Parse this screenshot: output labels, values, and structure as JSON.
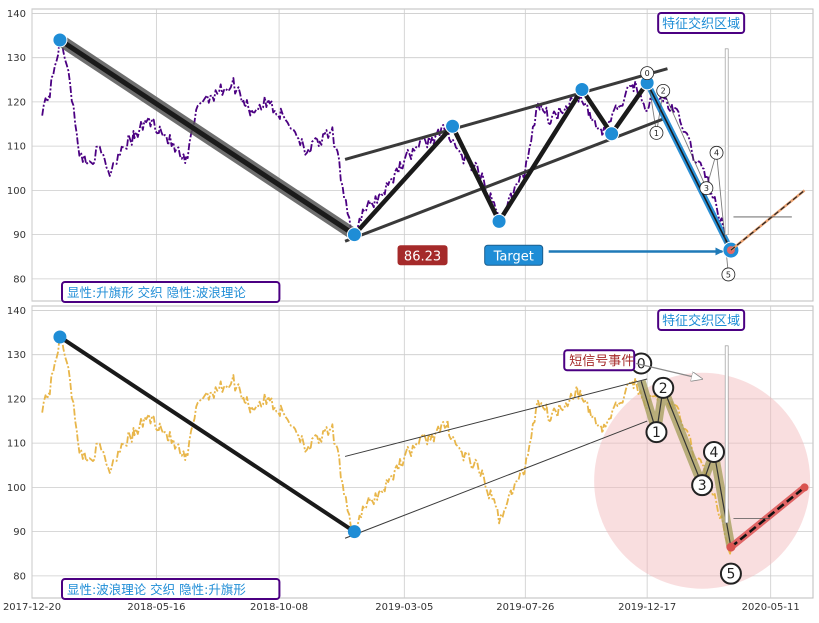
{
  "chart_data": [
    {
      "type": "line",
      "panel": "top",
      "ylim": [
        75,
        141
      ],
      "yticks": [
        80,
        90,
        100,
        110,
        120,
        130,
        140
      ],
      "xlim": [
        "2017-12-20",
        "2020-06-30"
      ],
      "xticks": [
        "2017-12-20",
        "2018-05-16",
        "2018-10-08",
        "2019-03-05",
        "2019-07-26",
        "2019-12-17",
        "2020-05-11"
      ],
      "grid": true,
      "price_series": {
        "style": "dash-dot",
        "color": "#4b0082",
        "anchors": [
          [
            "2018-01-01",
            118.5
          ],
          [
            "2018-01-10",
            122
          ],
          [
            "2018-01-22",
            134
          ],
          [
            "2018-02-01",
            128
          ],
          [
            "2018-02-12",
            110
          ],
          [
            "2018-02-22",
            106
          ],
          [
            "2018-03-10",
            109
          ],
          [
            "2018-03-22",
            104
          ],
          [
            "2018-04-05",
            110
          ],
          [
            "2018-04-20",
            112
          ],
          [
            "2018-05-05",
            116
          ],
          [
            "2018-05-20",
            114
          ],
          [
            "2018-06-05",
            110
          ],
          [
            "2018-06-20",
            106
          ],
          [
            "2018-07-05",
            120
          ],
          [
            "2018-07-25",
            122
          ],
          [
            "2018-08-15",
            124
          ],
          [
            "2018-09-05",
            118
          ],
          [
            "2018-09-25",
            120
          ],
          [
            "2018-10-10",
            117
          ],
          [
            "2018-10-25",
            114
          ],
          [
            "2018-11-10",
            109
          ],
          [
            "2018-11-25",
            111
          ],
          [
            "2018-12-10",
            113
          ],
          [
            "2019-01-03",
            90
          ],
          [
            "2019-01-20",
            96
          ],
          [
            "2019-02-10",
            100
          ],
          [
            "2019-03-01",
            106
          ],
          [
            "2019-03-20",
            110
          ],
          [
            "2019-04-10",
            112
          ],
          [
            "2019-04-25",
            114
          ],
          [
            "2019-05-10",
            108
          ],
          [
            "2019-06-01",
            104
          ],
          [
            "2019-06-15",
            98
          ],
          [
            "2019-06-25",
            93
          ],
          [
            "2019-07-10",
            99
          ],
          [
            "2019-07-25",
            104
          ],
          [
            "2019-08-10",
            120
          ],
          [
            "2019-08-25",
            116
          ],
          [
            "2019-09-10",
            119
          ],
          [
            "2019-09-25",
            122
          ],
          [
            "2019-10-10",
            117
          ],
          [
            "2019-10-25",
            113
          ],
          [
            "2019-11-10",
            118
          ],
          [
            "2019-12-01",
            124
          ],
          [
            "2019-12-15",
            119
          ],
          [
            "2020-01-05",
            121
          ],
          [
            "2020-01-25",
            116
          ],
          [
            "2020-02-10",
            108
          ],
          [
            "2020-02-25",
            103
          ],
          [
            "2020-03-10",
            95
          ],
          [
            "2020-03-20",
            88
          ],
          [
            "2020-03-25",
            86
          ]
        ]
      },
      "pattern_points": [
        [
          "2018-01-22",
          134
        ],
        [
          "2019-01-05",
          90
        ],
        [
          "2019-05-01",
          114.5
        ],
        [
          "2019-06-25",
          93
        ],
        [
          "2019-10-01",
          122.8
        ],
        [
          "2019-11-05",
          112.8
        ],
        [
          "2019-12-17",
          124.3
        ],
        [
          "2020-03-25",
          86.5
        ]
      ],
      "flag_channel": {
        "upper": [
          [
            "2018-12-25",
            107
          ],
          [
            "2020-01-10",
            127.5
          ]
        ],
        "lower": [
          [
            "2018-12-25",
            88.5
          ],
          [
            "2020-01-10",
            116.5
          ]
        ]
      },
      "wave_labels": [
        {
          "label": "0",
          "x": "2019-12-17",
          "y": 126.5
        },
        {
          "label": "1",
          "x": "2019-12-28",
          "y": 113
        },
        {
          "label": "2",
          "x": "2020-01-05",
          "y": 122.5
        },
        {
          "label": "3",
          "x": "2020-02-25",
          "y": 100.5
        },
        {
          "label": "4",
          "x": "2020-03-08",
          "y": 108.5
        },
        {
          "label": "5",
          "x": "2020-03-22",
          "y": 81
        }
      ],
      "forecast": [
        [
          "2020-03-25",
          86.5
        ],
        [
          "2020-06-20",
          100
        ]
      ],
      "annotations": {
        "price_box": "86.23",
        "target_box": "Target",
        "zone_label": "特征交织区域",
        "legend_box": "显性:升旗形 交织 隐性:波浪理论"
      }
    },
    {
      "type": "line",
      "panel": "bottom",
      "ylim": [
        75,
        141
      ],
      "yticks": [
        80,
        90,
        100,
        110,
        120,
        130,
        140
      ],
      "xlim": [
        "2017-12-20",
        "2020-06-30"
      ],
      "xticks": [
        "2017-12-20",
        "2018-05-16",
        "2018-10-08",
        "2019-03-05",
        "2019-07-26",
        "2019-12-17",
        "2020-05-11"
      ],
      "grid": true,
      "price_series": {
        "style": "dash-dot",
        "color": "#e8b64a"
      },
      "pattern_points": [
        [
          "2018-01-22",
          134
        ],
        [
          "2019-01-05",
          90
        ]
      ],
      "flag_channel": {
        "upper": [
          [
            "2018-12-25",
            107
          ],
          [
            "2019-12-17",
            124.5
          ]
        ],
        "lower": [
          [
            "2018-12-25",
            88.5
          ],
          [
            "2019-12-17",
            115
          ]
        ]
      },
      "wave_path": [
        [
          "2019-12-10",
          124
        ],
        [
          "2019-12-28",
          112.5
        ],
        [
          "2020-01-05",
          122.5
        ],
        [
          "2020-02-20",
          100.5
        ],
        [
          "2020-03-05",
          108
        ],
        [
          "2020-03-25",
          86.5
        ]
      ],
      "wave_labels": [
        {
          "label": "0",
          "x": "2019-12-10",
          "y": 128
        },
        {
          "label": "1",
          "x": "2019-12-28",
          "y": 112.5
        },
        {
          "label": "2",
          "x": "2020-01-05",
          "y": 122.5
        },
        {
          "label": "3",
          "x": "2020-02-20",
          "y": 100.5
        },
        {
          "label": "4",
          "x": "2020-03-05",
          "y": 108
        },
        {
          "label": "5",
          "x": "2020-03-25",
          "y": 80.5
        }
      ],
      "forecast": [
        [
          "2020-03-25",
          86.5
        ],
        [
          "2020-06-20",
          100
        ]
      ],
      "annotations": {
        "signal_label": "短信号事件",
        "zone_label": "特征交织区域",
        "legend_box": "显性:波浪理论 交织 隐性:升旗形"
      }
    }
  ],
  "colors": {
    "grid": "#cccccc",
    "pivot_blue": "#1f8dd6",
    "price_box_bg": "#a52a2a",
    "target_bg": "#1f8dd6",
    "legend_text": "#1f8dd6",
    "legend_border": "#4b0082",
    "signal_text": "#a52a2a",
    "circle_fill": "#f2b5b9",
    "forecast_red": "#e06666"
  }
}
